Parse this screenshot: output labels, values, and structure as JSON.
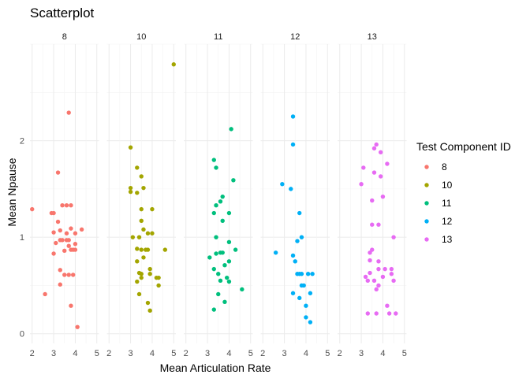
{
  "chart_data": {
    "type": "scatter",
    "title": "Scatterplot",
    "xlabel": "Mean Articulation Rate",
    "ylabel": "Mean Npause",
    "xlim": [
      1.9,
      5.1
    ],
    "ylim": [
      -0.1,
      3.0
    ],
    "xticks": [
      2,
      3,
      4,
      5
    ],
    "yticks": [
      0,
      1,
      2
    ],
    "legend": {
      "title": "Test Component ID",
      "placement": "right",
      "entries": [
        {
          "label": "8",
          "color": "#F8766D"
        },
        {
          "label": "10",
          "color": "#A3A500"
        },
        {
          "label": "11",
          "color": "#00BF7D"
        },
        {
          "label": "12",
          "color": "#00B0F6"
        },
        {
          "label": "13",
          "color": "#E76BF3"
        }
      ]
    },
    "facets": [
      {
        "label": "8",
        "color": "#F8766D",
        "points": [
          [
            2.0,
            1.29
          ],
          [
            2.6,
            0.41
          ],
          [
            2.9,
            1.25
          ],
          [
            3.0,
            1.25
          ],
          [
            3.0,
            1.05
          ],
          [
            3.0,
            0.83
          ],
          [
            3.1,
            0.94
          ],
          [
            3.2,
            1.67
          ],
          [
            3.2,
            1.16
          ],
          [
            3.3,
            0.66
          ],
          [
            3.3,
            0.97
          ],
          [
            3.3,
            1.07
          ],
          [
            3.3,
            0.51
          ],
          [
            3.4,
            1.33
          ],
          [
            3.4,
            0.97
          ],
          [
            3.5,
            0.86
          ],
          [
            3.5,
            0.61
          ],
          [
            3.6,
            1.33
          ],
          [
            3.6,
            1.04
          ],
          [
            3.6,
            0.97
          ],
          [
            3.7,
            2.29
          ],
          [
            3.7,
            0.97
          ],
          [
            3.7,
            0.61
          ],
          [
            3.7,
            0.91
          ],
          [
            3.8,
            1.33
          ],
          [
            3.8,
            1.09
          ],
          [
            3.8,
            0.87
          ],
          [
            3.8,
            0.29
          ],
          [
            3.9,
            0.61
          ],
          [
            3.9,
            0.87
          ],
          [
            4.0,
            1.04
          ],
          [
            4.0,
            0.93
          ],
          [
            4.0,
            0.87
          ],
          [
            4.1,
            0.07
          ],
          [
            4.3,
            1.08
          ]
        ]
      },
      {
        "label": "10",
        "color": "#A3A500",
        "points": [
          [
            3.0,
            1.93
          ],
          [
            3.0,
            1.51
          ],
          [
            3.0,
            1.47
          ],
          [
            3.1,
            1.0
          ],
          [
            3.3,
            1.72
          ],
          [
            3.3,
            1.46
          ],
          [
            3.3,
            0.88
          ],
          [
            3.3,
            0.75
          ],
          [
            3.3,
            0.54
          ],
          [
            3.4,
            1.0
          ],
          [
            3.4,
            0.63
          ],
          [
            3.4,
            0.41
          ],
          [
            3.5,
            1.63
          ],
          [
            3.5,
            1.29
          ],
          [
            3.5,
            1.17
          ],
          [
            3.5,
            0.87
          ],
          [
            3.5,
            0.62
          ],
          [
            3.5,
            0.58
          ],
          [
            3.6,
            1.51
          ],
          [
            3.6,
            1.08
          ],
          [
            3.6,
            0.79
          ],
          [
            3.7,
            0.87
          ],
          [
            3.8,
            1.04
          ],
          [
            3.8,
            0.87
          ],
          [
            3.8,
            0.32
          ],
          [
            3.9,
            0.24
          ],
          [
            3.9,
            0.67
          ],
          [
            3.9,
            0.62
          ],
          [
            4.0,
            1.29
          ],
          [
            4.0,
            1.04
          ],
          [
            4.2,
            0.58
          ],
          [
            4.3,
            0.5
          ],
          [
            4.3,
            0.58
          ],
          [
            4.6,
            0.87
          ],
          [
            5.0,
            2.79
          ]
        ]
      },
      {
        "label": "11",
        "color": "#00BF7D",
        "points": [
          [
            3.1,
            0.79
          ],
          [
            3.3,
            1.8
          ],
          [
            3.3,
            1.25
          ],
          [
            3.3,
            0.67
          ],
          [
            3.3,
            0.25
          ],
          [
            3.4,
            1.72
          ],
          [
            3.4,
            1.33
          ],
          [
            3.4,
            1.0
          ],
          [
            3.4,
            0.83
          ],
          [
            3.5,
            0.41
          ],
          [
            3.5,
            0.62
          ],
          [
            3.6,
            1.37
          ],
          [
            3.6,
            0.84
          ],
          [
            3.6,
            0.55
          ],
          [
            3.7,
            1.42
          ],
          [
            3.7,
            1.17
          ],
          [
            3.7,
            0.84
          ],
          [
            3.8,
            0.71
          ],
          [
            3.8,
            0.33
          ],
          [
            3.9,
            0.58
          ],
          [
            4.0,
            1.25
          ],
          [
            4.0,
            0.95
          ],
          [
            4.0,
            0.54
          ],
          [
            4.0,
            0.75
          ],
          [
            4.1,
            2.12
          ],
          [
            4.2,
            1.59
          ],
          [
            4.3,
            0.87
          ],
          [
            4.6,
            0.46
          ]
        ]
      },
      {
        "label": "12",
        "color": "#00B0F6",
        "points": [
          [
            2.6,
            0.84
          ],
          [
            2.9,
            1.55
          ],
          [
            3.3,
            1.5
          ],
          [
            3.4,
            2.25
          ],
          [
            3.4,
            1.96
          ],
          [
            3.4,
            0.42
          ],
          [
            3.4,
            0.81
          ],
          [
            3.5,
            0.75
          ],
          [
            3.6,
            0.96
          ],
          [
            3.6,
            0.62
          ],
          [
            3.7,
            0.37
          ],
          [
            3.7,
            1.25
          ],
          [
            3.7,
            0.62
          ],
          [
            3.8,
            0.5
          ],
          [
            3.8,
            1.0
          ],
          [
            3.8,
            0.62
          ],
          [
            3.9,
            0.5
          ],
          [
            4.0,
            0.29
          ],
          [
            4.0,
            0.17
          ],
          [
            4.1,
            0.62
          ],
          [
            4.2,
            0.42
          ],
          [
            4.2,
            0.12
          ],
          [
            4.3,
            0.62
          ]
        ]
      },
      {
        "label": "13",
        "color": "#E76BF3",
        "points": [
          [
            3.0,
            1.55
          ],
          [
            3.1,
            1.72
          ],
          [
            3.2,
            0.59
          ],
          [
            3.3,
            0.55
          ],
          [
            3.3,
            0.21
          ],
          [
            3.4,
            0.63
          ],
          [
            3.4,
            0.76
          ],
          [
            3.4,
            0.84
          ],
          [
            3.5,
            1.38
          ],
          [
            3.5,
            1.13
          ],
          [
            3.5,
            0.87
          ],
          [
            3.6,
            1.92
          ],
          [
            3.6,
            1.67
          ],
          [
            3.6,
            0.55
          ],
          [
            3.7,
            1.96
          ],
          [
            3.7,
            0.46
          ],
          [
            3.7,
            0.21
          ],
          [
            3.8,
            1.13
          ],
          [
            3.8,
            0.75
          ],
          [
            3.8,
            0.5
          ],
          [
            3.8,
            0.67
          ],
          [
            3.9,
            1.88
          ],
          [
            3.9,
            1.63
          ],
          [
            4.0,
            1.42
          ],
          [
            4.0,
            0.59
          ],
          [
            4.1,
            0.67
          ],
          [
            4.2,
            1.76
          ],
          [
            4.2,
            0.29
          ],
          [
            4.3,
            0.21
          ],
          [
            4.4,
            0.67
          ],
          [
            4.4,
            0.62
          ],
          [
            4.5,
            1.0
          ],
          [
            4.5,
            0.55
          ],
          [
            4.6,
            0.21
          ]
        ]
      }
    ]
  }
}
